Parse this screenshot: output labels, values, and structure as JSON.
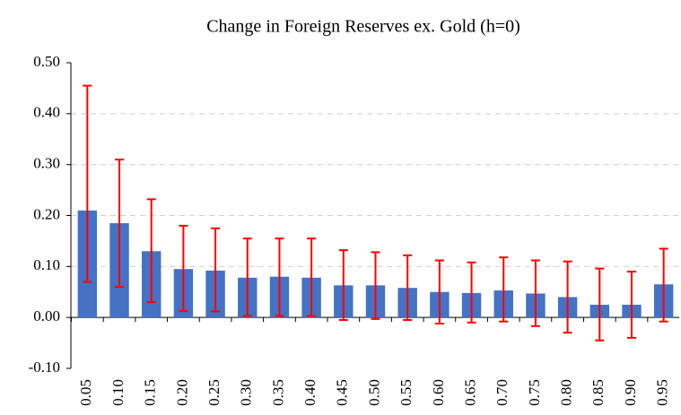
{
  "chart_data": {
    "type": "bar",
    "title": "Change in Foreign Reserves ex. Gold (h=0)",
    "categories": [
      "0.05",
      "0.10",
      "0.15",
      "0.20",
      "0.25",
      "0.30",
      "0.35",
      "0.40",
      "0.45",
      "0.50",
      "0.55",
      "0.60",
      "0.65",
      "0.70",
      "0.75",
      "0.80",
      "0.85",
      "0.90",
      "0.95"
    ],
    "values": [
      0.21,
      0.185,
      0.13,
      0.095,
      0.092,
      0.078,
      0.08,
      0.078,
      0.063,
      0.063,
      0.058,
      0.05,
      0.048,
      0.053,
      0.047,
      0.04,
      0.025,
      0.025,
      0.065
    ],
    "lower": [
      0.07,
      0.06,
      0.03,
      0.013,
      0.012,
      0.003,
      0.003,
      0.003,
      -0.005,
      -0.003,
      -0.005,
      -0.012,
      -0.01,
      -0.008,
      -0.017,
      -0.03,
      -0.045,
      -0.04,
      -0.008
    ],
    "upper": [
      0.455,
      0.31,
      0.232,
      0.18,
      0.175,
      0.155,
      0.155,
      0.155,
      0.132,
      0.128,
      0.122,
      0.112,
      0.108,
      0.118,
      0.112,
      0.11,
      0.096,
      0.09,
      0.135
    ],
    "color": "#4472c4",
    "error_color": "#ff0000",
    "ylim": [
      -0.1,
      0.5
    ],
    "yticks": [
      {
        "value": -0.1,
        "label": "-0.10"
      },
      {
        "value": 0,
        "label": "0.00"
      },
      {
        "value": 0.1,
        "label": "0.10"
      },
      {
        "value": 0.2,
        "label": "0.20"
      },
      {
        "value": 0.3,
        "label": "0.30"
      },
      {
        "value": 0.4,
        "label": "0.40"
      },
      {
        "value": 0.5,
        "label": "0.50"
      }
    ],
    "grid": true
  }
}
